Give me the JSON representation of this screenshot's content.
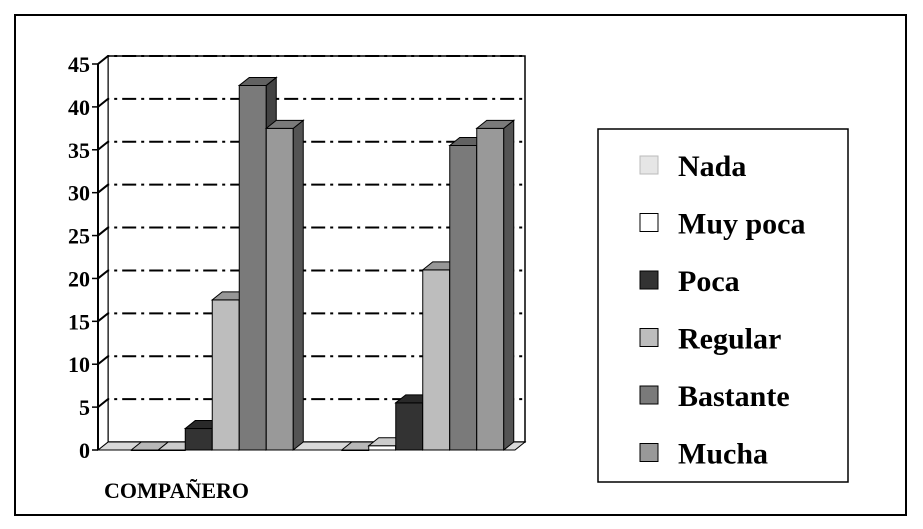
{
  "chart_data": {
    "type": "bar",
    "categories": [
      "COMPAÑERO",
      ""
    ],
    "series": [
      {
        "name": "Nada",
        "values": [
          0,
          0
        ],
        "color": "#e6e6e6"
      },
      {
        "name": "Muy poca",
        "values": [
          0,
          0.5
        ],
        "color": "#ffffff"
      },
      {
        "name": "Poca",
        "values": [
          2.5,
          5.5
        ],
        "color": "#333333"
      },
      {
        "name": "Regular",
        "values": [
          17.5,
          21
        ],
        "color": "#bdbdbd"
      },
      {
        "name": "Bastante",
        "values": [
          42.5,
          35.5
        ],
        "color": "#7a7a7a"
      },
      {
        "name": "Mucha",
        "values": [
          37.5,
          37.5
        ],
        "color": "#999999"
      }
    ],
    "ylim": [
      0,
      45
    ],
    "yticks": [
      "0",
      "5",
      "10",
      "15",
      "20",
      "25",
      "30",
      "35",
      "40",
      "45"
    ],
    "grid": true,
    "legend_position": "right",
    "xlabel": "",
    "ylabel": "",
    "title": ""
  }
}
